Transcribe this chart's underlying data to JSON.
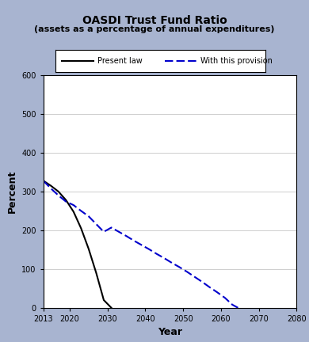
{
  "title_line1": "OASDI Trust Fund Ratio",
  "title_line2": "(assets as a percentage of annual expenditures)",
  "xlabel": "Year",
  "ylabel": "Percent",
  "xlim": [
    2013,
    2080
  ],
  "ylim": [
    0,
    600
  ],
  "yticks": [
    0,
    100,
    200,
    300,
    400,
    500,
    600
  ],
  "xticks": [
    2013,
    2020,
    2030,
    2040,
    2050,
    2060,
    2070,
    2080
  ],
  "background_color": "#a8b4d0",
  "plot_bg_color": "#ffffff",
  "present_law": {
    "x": [
      2013,
      2015,
      2017,
      2019,
      2021,
      2023,
      2025,
      2027,
      2029,
      2031,
      2033
    ],
    "y": [
      328,
      315,
      300,
      278,
      248,
      205,
      152,
      90,
      20,
      0,
      0
    ],
    "color": "#000000",
    "linewidth": 1.5,
    "label": "Present law"
  },
  "provision": {
    "x": [
      2013,
      2015,
      2017,
      2019,
      2021,
      2023,
      2025,
      2027,
      2029,
      2031,
      2033,
      2035,
      2037,
      2039,
      2041,
      2043,
      2045,
      2047,
      2049,
      2051,
      2053,
      2055,
      2057,
      2059,
      2061,
      2063,
      2064.5
    ],
    "y": [
      328,
      308,
      290,
      274,
      265,
      250,
      236,
      216,
      196,
      207,
      196,
      185,
      173,
      162,
      151,
      139,
      128,
      116,
      105,
      93,
      80,
      67,
      53,
      40,
      26,
      8,
      0
    ],
    "color": "#0000cc",
    "linewidth": 1.5,
    "label": "With this provision"
  },
  "legend_box_color": "#ffffff",
  "legend_border_color": "#000000",
  "title_fontsize": 10,
  "subtitle_fontsize": 8,
  "axis_label_fontsize": 9,
  "tick_fontsize": 7,
  "legend_fontsize": 7
}
